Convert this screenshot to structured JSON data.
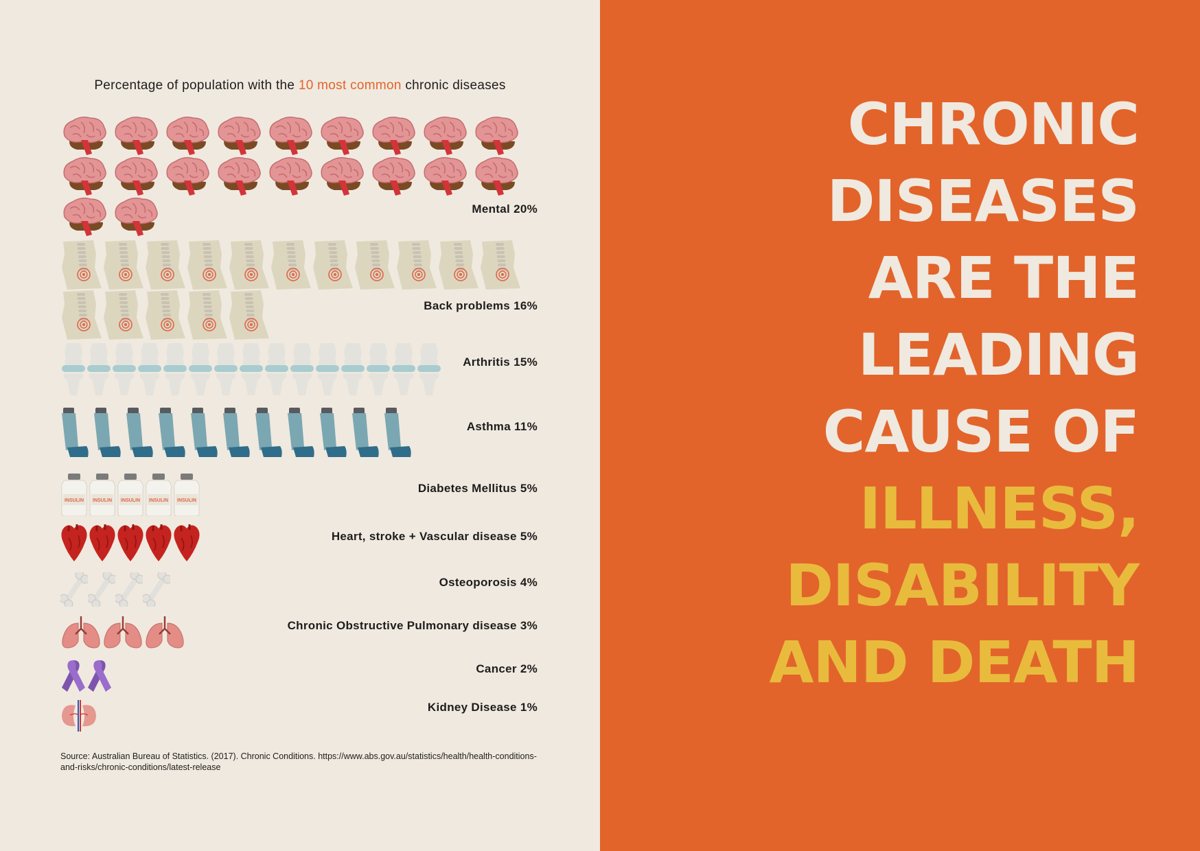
{
  "colors": {
    "left_bg": "#f0e9df",
    "right_bg": "#e2642b",
    "accent": "#e2642b",
    "headline_light": "#f0e9df",
    "headline_yellow": "#e8bb3d",
    "text": "#1d1d1d"
  },
  "title": {
    "before": "Percentage of population with the ",
    "highlight": "10 most common",
    "after": " chronic diseases"
  },
  "chart_data": {
    "type": "pictograph",
    "unit": "% of population (1 icon = 1%)",
    "categories": [
      {
        "name": "Mental",
        "value": 20,
        "label": "Mental 20%",
        "icon": "brain-icon"
      },
      {
        "name": "Back problems",
        "value": 16,
        "label": "Back problems 16%",
        "icon": "spine-icon"
      },
      {
        "name": "Arthritis",
        "value": 15,
        "label": "Arthritis 15%",
        "icon": "knee-joint-icon"
      },
      {
        "name": "Asthma",
        "value": 11,
        "label": "Asthma 11%",
        "icon": "inhaler-icon"
      },
      {
        "name": "Diabetes Mellitus",
        "value": 5,
        "label": "Diabetes Mellitus 5%",
        "icon": "insulin-vial-icon",
        "icon_text": "INSULIN"
      },
      {
        "name": "Heart, stroke + Vascular disease",
        "value": 5,
        "label": "Heart, stroke + Vascular disease 5%",
        "icon": "heart-icon"
      },
      {
        "name": "Osteoporosis",
        "value": 4,
        "label": "Osteoporosis 4%",
        "icon": "bone-icon"
      },
      {
        "name": "Chronic Obstructive Pulmonary disease",
        "value": 3,
        "label": "Chronic Obstructive Pulmonary disease 3%",
        "icon": "lungs-icon"
      },
      {
        "name": "Cancer",
        "value": 2,
        "label": "Cancer 2%",
        "icon": "ribbon-icon"
      },
      {
        "name": "Kidney Disease",
        "value": 1,
        "label": "Kidney Disease 1%",
        "icon": "kidney-icon"
      }
    ]
  },
  "source": "Source: Australian Bureau of Statistics. (2017). Chronic Conditions. https://www.abs.gov.au/statistics/health/health-conditions-and-risks/chronic-conditions/latest-release",
  "headline": {
    "lines": [
      {
        "text": "CHRONIC",
        "color": "light"
      },
      {
        "text": "DISEASES",
        "color": "light"
      },
      {
        "text": "ARE THE",
        "color": "light"
      },
      {
        "text": "LEADING",
        "color": "light"
      },
      {
        "text": "CAUSE OF",
        "color": "light"
      },
      {
        "text": "ILLNESS,",
        "color": "yellow"
      },
      {
        "text": "DISABILITY",
        "color": "yellow"
      },
      {
        "text": "AND DEATH",
        "color": "yellow"
      }
    ]
  }
}
